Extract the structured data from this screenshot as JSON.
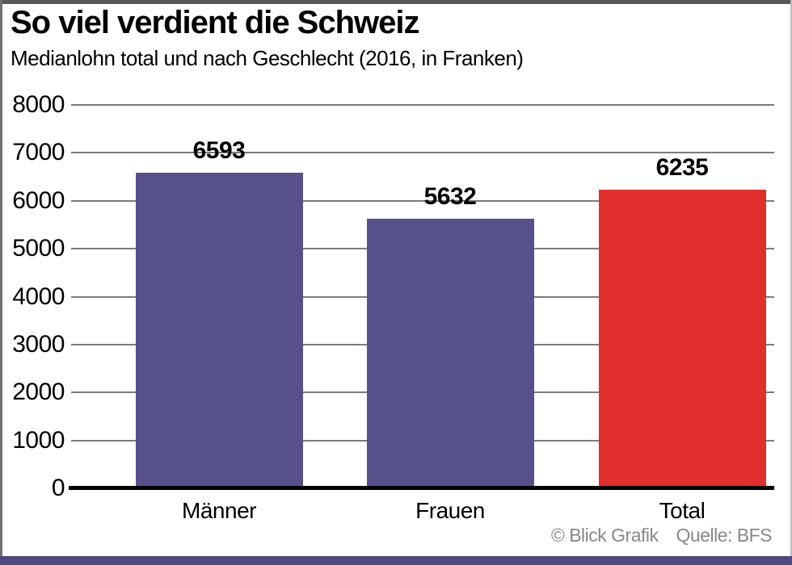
{
  "header": {
    "title": "So viel verdient die Schweiz",
    "subtitle": "Medianlohn total und nach Geschlecht (2016, in Franken)"
  },
  "footer": {
    "credit": "© Blick Grafik",
    "source": "Quelle: BFS"
  },
  "colors": {
    "bar_purple": "#56508b",
    "bar_red": "#e12f2e",
    "gridline": "#7b7b7b",
    "baseline": "#000000",
    "accent_strip": "#4e4980",
    "footer_text": "#87888a",
    "border_top": "#58585a"
  },
  "chart_data": {
    "type": "bar",
    "title": "So viel verdient die Schweiz",
    "subtitle": "Medianlohn total und nach Geschlecht (2016, in Franken)",
    "categories": [
      "Männer",
      "Frauen",
      "Total"
    ],
    "values": [
      6593,
      5632,
      6235
    ],
    "value_labels": [
      "6593",
      "5632",
      "6235"
    ],
    "bar_colors": [
      "#56508b",
      "#56508b",
      "#e12f2e"
    ],
    "xlabel": "",
    "ylabel": "",
    "ylim": [
      0,
      8000
    ],
    "ytick_step": 1000,
    "ytick_labels": [
      "0",
      "1000",
      "2000",
      "3000",
      "4000",
      "5000",
      "6000",
      "7000",
      "8000"
    ],
    "grid": true,
    "legend": false,
    "source": "Quelle: BFS",
    "credit": "© Blick Grafik"
  }
}
